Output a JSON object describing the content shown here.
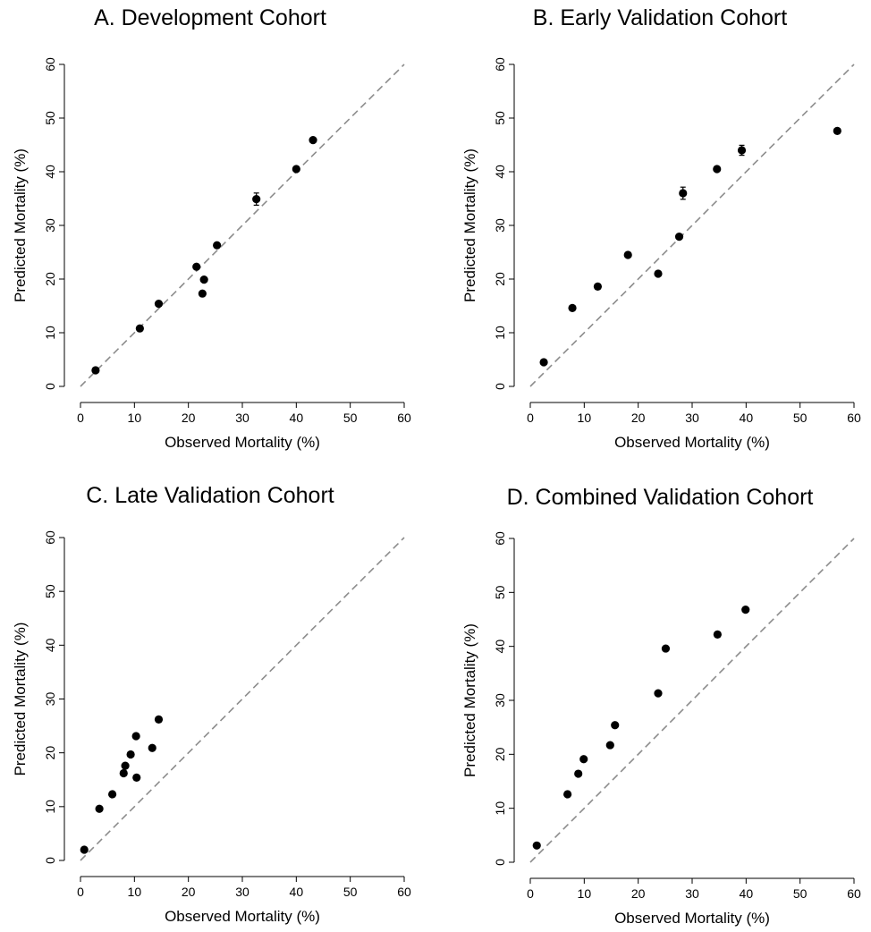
{
  "chart_data": [
    {
      "type": "scatter",
      "title": "A. Development Cohort",
      "xlabel": "Observed Mortality (%)",
      "ylabel": "Predicted Mortality (%)",
      "xlim": [
        0,
        60
      ],
      "ylim": [
        0,
        60
      ],
      "xticks": [
        "0",
        "10",
        "20",
        "30",
        "40",
        "50",
        "60"
      ],
      "yticks": [
        "0",
        "10",
        "20",
        "30",
        "40",
        "50",
        "60"
      ],
      "reference_line": "y = x (dashed gray)",
      "grid": false,
      "points": [
        {
          "x": 2.8,
          "y": 3.0
        },
        {
          "x": 11.0,
          "y": 10.8
        },
        {
          "x": 14.5,
          "y": 15.4
        },
        {
          "x": 21.5,
          "y": 22.3
        },
        {
          "x": 22.6,
          "y": 17.3
        },
        {
          "x": 22.9,
          "y": 19.9
        },
        {
          "x": 25.3,
          "y": 26.3
        },
        {
          "x": 32.6,
          "y": 34.9,
          "err": 0.8
        },
        {
          "x": 40.0,
          "y": 40.5
        },
        {
          "x": 43.1,
          "y": 45.9
        }
      ]
    },
    {
      "type": "scatter",
      "title": "B. Early Validation Cohort",
      "xlabel": "Observed Mortality (%)",
      "ylabel": "Predicted Mortality (%)",
      "xlim": [
        0,
        60
      ],
      "ylim": [
        0,
        60
      ],
      "xticks": [
        "0",
        "10",
        "20",
        "30",
        "40",
        "50",
        "60"
      ],
      "yticks": [
        "0",
        "10",
        "20",
        "30",
        "40",
        "50",
        "60"
      ],
      "reference_line": "y = x (dashed gray)",
      "grid": false,
      "points": [
        {
          "x": 2.5,
          "y": 4.5
        },
        {
          "x": 7.8,
          "y": 14.6
        },
        {
          "x": 12.5,
          "y": 18.6
        },
        {
          "x": 18.1,
          "y": 24.5
        },
        {
          "x": 23.7,
          "y": 21.0
        },
        {
          "x": 27.6,
          "y": 27.9
        },
        {
          "x": 28.3,
          "y": 36.0,
          "err": 0.8
        },
        {
          "x": 34.6,
          "y": 40.5
        },
        {
          "x": 39.2,
          "y": 44.0,
          "err": 0.6
        },
        {
          "x": 56.9,
          "y": 47.6
        }
      ]
    },
    {
      "type": "scatter",
      "title": "C. Late Validation Cohort",
      "xlabel": "Observed Mortality (%)",
      "ylabel": "Predicted Mortality (%)",
      "xlim": [
        0,
        60
      ],
      "ylim": [
        0,
        60
      ],
      "xticks": [
        "0",
        "10",
        "20",
        "30",
        "40",
        "50",
        "60"
      ],
      "yticks": [
        "0",
        "10",
        "20",
        "30",
        "40",
        "50",
        "60"
      ],
      "reference_line": "y = x (dashed gray)",
      "grid": false,
      "points": [
        {
          "x": 0.7,
          "y": 2.0
        },
        {
          "x": 3.5,
          "y": 9.6
        },
        {
          "x": 5.9,
          "y": 12.3
        },
        {
          "x": 8.0,
          "y": 16.2
        },
        {
          "x": 8.3,
          "y": 17.6
        },
        {
          "x": 9.3,
          "y": 19.7
        },
        {
          "x": 10.3,
          "y": 23.1
        },
        {
          "x": 10.4,
          "y": 15.4
        },
        {
          "x": 13.3,
          "y": 20.9
        },
        {
          "x": 14.5,
          "y": 26.2
        }
      ]
    },
    {
      "type": "scatter",
      "title": "D. Combined Validation Cohort",
      "xlabel": "Observed Mortality (%)",
      "ylabel": "Predicted Mortality (%)",
      "xlim": [
        0,
        60
      ],
      "ylim": [
        0,
        60
      ],
      "xticks": [
        "0",
        "10",
        "20",
        "30",
        "40",
        "50",
        "60"
      ],
      "yticks": [
        "0",
        "10",
        "20",
        "30",
        "40",
        "50",
        "60"
      ],
      "reference_line": "y = x (dashed gray)",
      "grid": false,
      "points": [
        {
          "x": 1.2,
          "y": 3.1
        },
        {
          "x": 6.9,
          "y": 12.6
        },
        {
          "x": 8.9,
          "y": 16.4
        },
        {
          "x": 9.9,
          "y": 19.1
        },
        {
          "x": 14.8,
          "y": 21.7
        },
        {
          "x": 15.7,
          "y": 25.4
        },
        {
          "x": 23.7,
          "y": 31.3
        },
        {
          "x": 25.1,
          "y": 39.6
        },
        {
          "x": 34.7,
          "y": 42.2
        },
        {
          "x": 39.9,
          "y": 46.8
        }
      ]
    }
  ]
}
